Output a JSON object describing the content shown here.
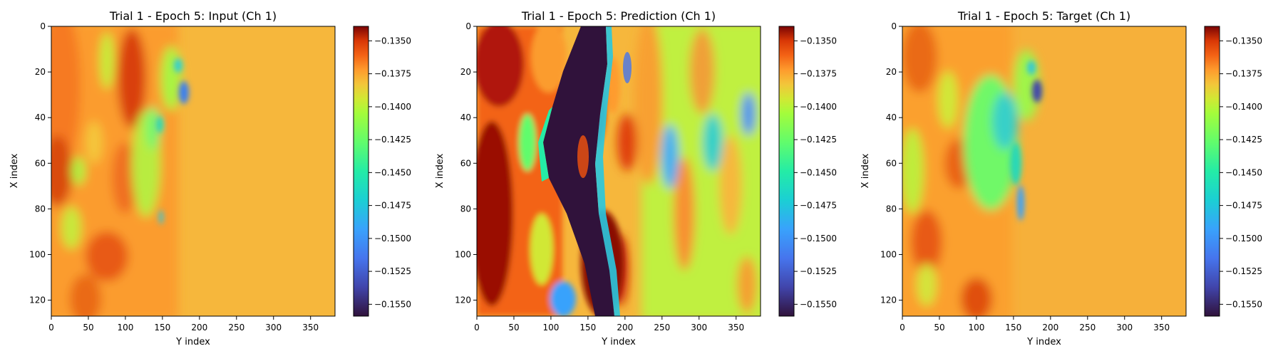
{
  "chart_data": [
    {
      "type": "heatmap",
      "title": "Trial 1 - Epoch 5: Input (Ch 1)",
      "xlabel": "Y index",
      "ylabel": "X index",
      "xlim": [
        0,
        383
      ],
      "ylim": [
        127,
        0
      ],
      "xticks": [
        0,
        50,
        100,
        150,
        200,
        250,
        300,
        350
      ],
      "yticks": [
        0,
        20,
        40,
        60,
        80,
        100,
        120
      ],
      "colormap": "turbo",
      "vmin": -0.1559,
      "vmax": -0.1339,
      "colorbar_ticks": [
        "−0.1350",
        "−0.1375",
        "−0.1400",
        "−0.1425",
        "−0.1450",
        "−0.1475",
        "−0.1500",
        "−0.1525",
        "−0.1550"
      ],
      "colorbar_values": [
        -0.135,
        -0.1375,
        -0.14,
        -0.1425,
        -0.145,
        -0.1475,
        -0.15,
        -0.1525,
        -0.155
      ],
      "grid": false
    },
    {
      "type": "heatmap",
      "title": "Trial 1 - Epoch 5: Prediction (Ch 1)",
      "xlabel": "Y index",
      "ylabel": "X index",
      "xlim": [
        0,
        383
      ],
      "ylim": [
        127,
        0
      ],
      "xticks": [
        0,
        50,
        100,
        150,
        200,
        250,
        300,
        350
      ],
      "yticks": [
        0,
        20,
        40,
        60,
        80,
        100,
        120
      ],
      "colormap": "turbo",
      "vmin": -0.1559,
      "vmax": -0.1339,
      "colorbar_ticks": [
        "−0.1350",
        "−0.1375",
        "−0.1400",
        "−0.1425",
        "−0.1450",
        "−0.1475",
        "−0.1500",
        "−0.1525",
        "−0.1550"
      ],
      "colorbar_values": [
        -0.135,
        -0.1375,
        -0.14,
        -0.1425,
        -0.145,
        -0.1475,
        -0.15,
        -0.1525,
        -0.155
      ],
      "grid": false
    },
    {
      "type": "heatmap",
      "title": "Trial 1 - Epoch 5: Target (Ch 1)",
      "xlabel": "Y index",
      "ylabel": "X index",
      "xlim": [
        0,
        383
      ],
      "ylim": [
        127,
        0
      ],
      "xticks": [
        0,
        50,
        100,
        150,
        200,
        250,
        300,
        350
      ],
      "yticks": [
        0,
        20,
        40,
        60,
        80,
        100,
        120
      ],
      "colormap": "turbo",
      "vmin": -0.1559,
      "vmax": -0.1339,
      "colorbar_ticks": [
        "−0.1350",
        "−0.1375",
        "−0.1400",
        "−0.1425",
        "−0.1450",
        "−0.1475",
        "−0.1500",
        "−0.1525",
        "−0.1550"
      ],
      "colorbar_values": [
        -0.135,
        -0.1375,
        -0.14,
        -0.1425,
        -0.145,
        -0.1475,
        -0.15,
        -0.1525,
        -0.155
      ],
      "grid": false
    }
  ]
}
